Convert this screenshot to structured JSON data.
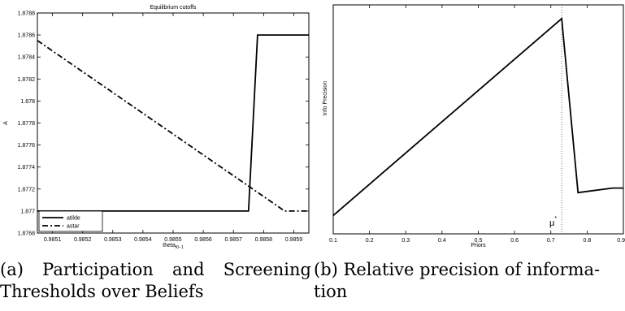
{
  "captions": {
    "a": "(a) Participation and Screening Thresholds over Beliefs",
    "b": "(b) Relative precision of informa-tion"
  },
  "chart_data": [
    {
      "type": "line",
      "title": "Equilibrium cutoffs",
      "xlabel_main": "theta",
      "xlabel_sub": "t0−1",
      "ylabel": "A",
      "xlim": [
        0.98505,
        0.98595
      ],
      "ylim": [
        1.8768,
        1.8788
      ],
      "x_ticks": [
        "0.9851",
        "0.9852",
        "0.9853",
        "0.9854",
        "0.9855",
        "0.9856",
        "0.9857",
        "0.9858",
        "0.9859"
      ],
      "x_tick_values": [
        0.9851,
        0.9852,
        0.9853,
        0.9854,
        0.9855,
        0.9856,
        0.9857,
        0.9858,
        0.9859
      ],
      "y_ticks": [
        "1.8768",
        "1.877",
        "1.8772",
        "1.8774",
        "1.8776",
        "1.8778",
        "1.878",
        "1.8782",
        "1.8784",
        "1.8786",
        "1.8788"
      ],
      "y_tick_values": [
        1.8768,
        1.877,
        1.8772,
        1.8774,
        1.8776,
        1.8778,
        1.878,
        1.8782,
        1.8784,
        1.8786,
        1.8788
      ],
      "grid": false,
      "legend": "bottom-left",
      "series": [
        {
          "name": "atilde",
          "style": "solid",
          "x": [
            0.98505,
            0.98575,
            0.98578,
            0.98595
          ],
          "y": [
            1.877,
            1.877,
            1.8786,
            1.8786
          ]
        },
        {
          "name": "astar",
          "style": "dashdot",
          "x": [
            0.98505,
            0.98587,
            0.98595
          ],
          "y": [
            1.87855,
            1.877,
            1.877
          ]
        }
      ]
    },
    {
      "type": "line",
      "title": "",
      "xlabel": "Priors",
      "ylabel": "Info Precision",
      "xlim": [
        0.1,
        0.9
      ],
      "ylim": [
        0,
        1
      ],
      "x_ticks": [
        "0.1",
        "0.2",
        "0.3",
        "0.4",
        "0.5",
        "0.6",
        "0.7",
        "0.8",
        "0.9"
      ],
      "x_tick_values": [
        0.1,
        0.2,
        0.3,
        0.4,
        0.5,
        0.6,
        0.7,
        0.8,
        0.9
      ],
      "y_ticks_shown": false,
      "grid": false,
      "annotation": {
        "label": "μ",
        "superscript": "*",
        "x": 0.73,
        "style": "dotted-vertical"
      },
      "series": [
        {
          "style": "solid",
          "x": [
            0.1,
            0.73,
            0.775,
            0.87,
            0.9
          ],
          "y": [
            0.08,
            0.94,
            0.18,
            0.2,
            0.2
          ]
        }
      ]
    }
  ]
}
